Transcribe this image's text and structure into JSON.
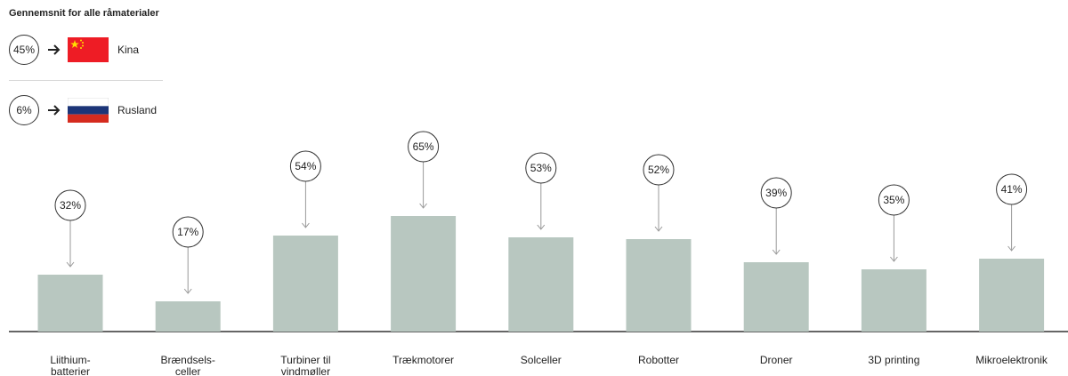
{
  "legend": {
    "title": "Gennemsnit for alle råmaterialer",
    "china": {
      "value": "45%",
      "country": "Kina",
      "flag": "china-flag-icon"
    },
    "russia": {
      "value": "6%",
      "country": "Rusland",
      "flag": "russia-flag-icon"
    }
  },
  "colors": {
    "bar": "#b8c7c0",
    "axis": "#333333",
    "leader": "#999999",
    "china_red": "#ee1c25",
    "china_yellow": "#ffde00",
    "russia_white": "#ffffff",
    "russia_blue": "#1c3578",
    "russia_red": "#d52b1e"
  },
  "chart_data": {
    "type": "bar",
    "categories": [
      [
        "Liithium-",
        "batterier"
      ],
      [
        "Brændsels-",
        "celler"
      ],
      [
        "Turbiner til",
        "vindmøller"
      ],
      [
        "Trækmotorer"
      ],
      [
        "Solceller"
      ],
      [
        "Robotter"
      ],
      [
        "Droner"
      ],
      [
        "3D printing"
      ],
      [
        "Mikroelektronik"
      ]
    ],
    "values": [
      32,
      17,
      54,
      65,
      53,
      52,
      39,
      35,
      41
    ],
    "value_labels": [
      "32%",
      "17%",
      "54%",
      "65%",
      "53%",
      "52%",
      "39%",
      "35%",
      "41%"
    ],
    "title": "",
    "xlabel": "",
    "ylabel": "",
    "ylim": [
      0,
      100
    ],
    "grid": false
  }
}
